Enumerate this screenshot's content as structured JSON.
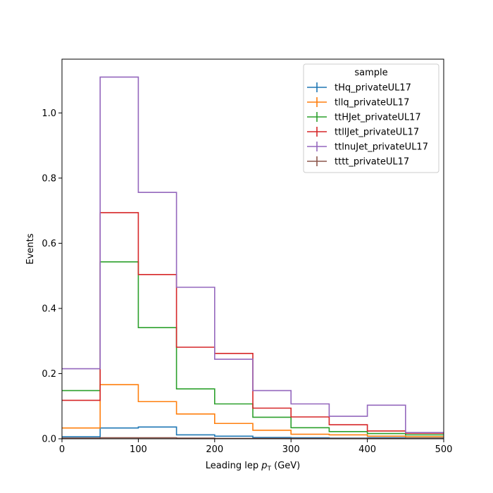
{
  "chart_data": {
    "type": "step-histogram",
    "xlabel_main": "Leading lep ",
    "xlabel_sym": "p",
    "xlabel_sub": "T",
    "xlabel_unit": " (GeV)",
    "ylabel": "Events",
    "xlim": [
      0,
      500
    ],
    "ylim": [
      0,
      1.165
    ],
    "xticks": [
      0,
      100,
      200,
      300,
      400,
      500
    ],
    "yticks": [
      0.0,
      0.2,
      0.4,
      0.6,
      0.8,
      1.0
    ],
    "xtick_labels": [
      "0",
      "100",
      "200",
      "300",
      "400",
      "500"
    ],
    "ytick_labels": [
      "0.0",
      "0.2",
      "0.4",
      "0.6",
      "0.8",
      "1.0"
    ],
    "grid": false,
    "legend_title": "sample",
    "legend_position": "top-right",
    "bin_edges": [
      0,
      50,
      100,
      150,
      200,
      250,
      300,
      350,
      400,
      450,
      500
    ],
    "series": [
      {
        "name": "tHq_privateUL17",
        "color": "#1f77b4",
        "values": [
          0.006,
          0.033,
          0.036,
          0.012,
          0.008,
          0.004,
          0.003,
          0.002,
          0.003,
          0.002
        ]
      },
      {
        "name": "tllq_privateUL17",
        "color": "#ff7f0e",
        "values": [
          0.033,
          0.166,
          0.114,
          0.076,
          0.047,
          0.026,
          0.014,
          0.012,
          0.008,
          0.006
        ]
      },
      {
        "name": "ttHJet_privateUL17",
        "color": "#2ca02c",
        "values": [
          0.148,
          0.543,
          0.341,
          0.153,
          0.107,
          0.066,
          0.034,
          0.022,
          0.016,
          0.012
        ]
      },
      {
        "name": "ttllJet_privateUL17",
        "color": "#d62728",
        "values": [
          0.118,
          0.694,
          0.504,
          0.281,
          0.262,
          0.094,
          0.067,
          0.043,
          0.024,
          0.017
        ]
      },
      {
        "name": "ttlnuJet_privateUL17",
        "color": "#9467bd",
        "values": [
          0.215,
          1.11,
          0.756,
          0.465,
          0.244,
          0.148,
          0.107,
          0.069,
          0.103,
          0.019
        ]
      },
      {
        "name": "tttt_privateUL17",
        "color": "#8c564b",
        "values": [
          0.002,
          0.003,
          0.003,
          0.002,
          0.001,
          0.001,
          0.001,
          0.001,
          0.001,
          0.001
        ]
      }
    ]
  }
}
